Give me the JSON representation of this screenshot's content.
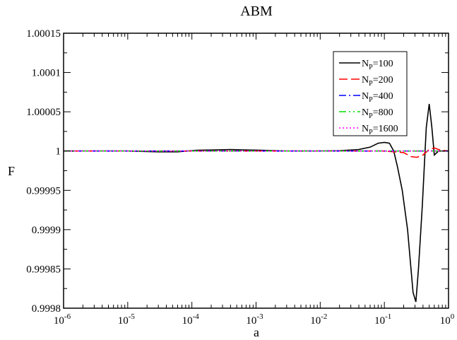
{
  "chart_data": {
    "type": "line",
    "title": "ABM",
    "xlabel": "a",
    "ylabel": "F",
    "xscale": "log",
    "xlim": [
      1e-06,
      1
    ],
    "ylim": [
      0.9998,
      1.00015
    ],
    "x_ticks": [
      {
        "value": 1e-06,
        "base": "10",
        "exp": "-6"
      },
      {
        "value": 1e-05,
        "base": "10",
        "exp": "-5"
      },
      {
        "value": 0.0001,
        "base": "10",
        "exp": "-4"
      },
      {
        "value": 0.001,
        "base": "10",
        "exp": "-3"
      },
      {
        "value": 0.01,
        "base": "10",
        "exp": "-2"
      },
      {
        "value": 0.1,
        "base": "10",
        "exp": "-1"
      },
      {
        "value": 1,
        "base": "10",
        "exp": "0"
      }
    ],
    "y_ticks": [
      {
        "value": 0.9998,
        "label": "0.9998"
      },
      {
        "value": 0.99985,
        "label": "0.99985"
      },
      {
        "value": 0.9999,
        "label": "0.9999"
      },
      {
        "value": 0.99995,
        "label": "0.99995"
      },
      {
        "value": 1.0,
        "label": "1"
      },
      {
        "value": 1.00005,
        "label": "1.00005"
      },
      {
        "value": 1.0001,
        "label": "1.0001"
      },
      {
        "value": 1.00015,
        "label": "1.00015"
      }
    ],
    "grid": false,
    "legend_position": "top-right",
    "series": [
      {
        "name": "N_P=100",
        "label_main": "N",
        "label_sub": "P",
        "label_rest": "=100",
        "color": "#000000",
        "dash": "",
        "points": [
          [
            1e-06,
            1.0
          ],
          [
            1e-05,
            1.0
          ],
          [
            3e-05,
            0.999999
          ],
          [
            6e-05,
            0.999999
          ],
          [
            0.00012,
            1.000001
          ],
          [
            0.00025,
            1.0000015
          ],
          [
            0.0004,
            1.000002
          ],
          [
            0.0006,
            1.0000015
          ],
          [
            0.0012,
            1.000001
          ],
          [
            0.003,
            1.0
          ],
          [
            0.01,
            1.0
          ],
          [
            0.02,
            1.0000005
          ],
          [
            0.04,
            1.000002
          ],
          [
            0.06,
            1.000005
          ],
          [
            0.08,
            1.00001
          ],
          [
            0.1,
            1.000011
          ],
          [
            0.12,
            1.00001
          ],
          [
            0.14,
            1.0
          ],
          [
            0.16,
            0.99998
          ],
          [
            0.19,
            0.99995
          ],
          [
            0.23,
            0.9999
          ],
          [
            0.28,
            0.99982
          ],
          [
            0.31,
            0.999808
          ],
          [
            0.34,
            0.99985
          ],
          [
            0.39,
            0.99993
          ],
          [
            0.45,
            1.00003
          ],
          [
            0.5,
            1.00006
          ],
          [
            0.55,
            1.00003
          ],
          [
            0.6,
            0.999995
          ],
          [
            0.7,
            1.0
          ],
          [
            0.8,
            1.0
          ],
          [
            1.0,
            1.0
          ]
        ]
      },
      {
        "name": "N_P=200",
        "label_main": "N",
        "label_sub": "P",
        "label_rest": "=200",
        "color": "#ff0000",
        "dash": "12,5",
        "points": [
          [
            1e-06,
            1.0
          ],
          [
            0.0001,
            1.0
          ],
          [
            0.001,
            1.0
          ],
          [
            0.01,
            1.0
          ],
          [
            0.1,
            1.0
          ],
          [
            0.2,
            0.999998
          ],
          [
            0.26,
            0.999993
          ],
          [
            0.32,
            0.999992
          ],
          [
            0.4,
            0.999995
          ],
          [
            0.5,
            1.000002
          ],
          [
            0.6,
            1.000004
          ],
          [
            0.7,
            1.000002
          ],
          [
            1.0,
            1.0
          ]
        ]
      },
      {
        "name": "N_P=400",
        "label_main": "N",
        "label_sub": "P",
        "label_rest": "=400",
        "color": "#0000ff",
        "dash": "10,4,2,4",
        "points": [
          [
            1e-06,
            1.0
          ],
          [
            0.001,
            1.0
          ],
          [
            0.1,
            1.0
          ],
          [
            0.4,
            1.0
          ],
          [
            0.6,
            1.0
          ],
          [
            1.0,
            1.0
          ]
        ]
      },
      {
        "name": "N_P=800",
        "label_main": "N",
        "label_sub": "P",
        "label_rest": "=800",
        "color": "#00dd00",
        "dash": "10,4,2,4,2,4",
        "points": [
          [
            1e-06,
            1.0
          ],
          [
            0.001,
            1.0
          ],
          [
            0.1,
            1.0
          ],
          [
            1.0,
            1.0
          ]
        ]
      },
      {
        "name": "N_P=1600",
        "label_main": "N",
        "label_sub": "P",
        "label_rest": "=1600",
        "color": "#ff00ff",
        "dash": "2,3",
        "points": [
          [
            1e-06,
            1.0
          ],
          [
            0.001,
            1.0
          ],
          [
            0.1,
            1.0
          ],
          [
            1.0,
            1.0
          ]
        ]
      }
    ]
  }
}
